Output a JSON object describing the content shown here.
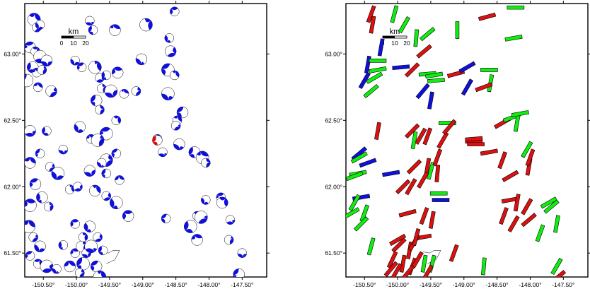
{
  "chart_data": [
    {
      "type": "scatter",
      "panel": "left",
      "marker": "focal-mechanism-beachball",
      "xlim": [
        -150.78,
        -147.13
      ],
      "ylim": [
        61.32,
        63.38
      ],
      "xticks": [
        -150.5,
        -150.0,
        -149.5,
        -149.0,
        -148.5,
        -148.0,
        -147.5
      ],
      "yticks": [
        61.5,
        62.0,
        62.5,
        63.0
      ],
      "xtick_labels": [
        "-150.50°",
        "-150.00°",
        "-149.50°",
        "-149.00°",
        "-148.50°",
        "-148.00°",
        "-147.50°"
      ],
      "ytick_labels": [
        "61.50°",
        "62.00°",
        "62.50°",
        "63.00°"
      ],
      "scale_bar": {
        "title": "km",
        "labels": [
          "0",
          "10",
          "20"
        ]
      },
      "colors": {
        "default": "#1010dd",
        "highlight": "#dd1010"
      },
      "points": [
        [
          -150.64,
          63.26
        ],
        [
          -150.6,
          63.2
        ],
        [
          -150.55,
          63.22
        ],
        [
          -150.7,
          63.05
        ],
        [
          -150.62,
          63.02
        ],
        [
          -150.55,
          62.98
        ],
        [
          -150.66,
          62.9
        ],
        [
          -150.6,
          62.86
        ],
        [
          -150.52,
          62.88
        ],
        [
          -150.45,
          62.95
        ],
        [
          -150.75,
          62.8
        ],
        [
          -150.58,
          62.75
        ],
        [
          -150.38,
          62.72
        ],
        [
          -150.02,
          62.95
        ],
        [
          -149.92,
          62.9
        ],
        [
          -149.72,
          62.9
        ],
        [
          -149.65,
          62.82
        ],
        [
          -149.55,
          62.84
        ],
        [
          -149.38,
          62.86
        ],
        [
          -149.62,
          62.74
        ],
        [
          -149.48,
          62.72
        ],
        [
          -149.7,
          62.65
        ],
        [
          -149.28,
          62.7
        ],
        [
          -149.1,
          62.72
        ],
        [
          -149.02,
          62.96
        ],
        [
          -148.62,
          62.88
        ],
        [
          -148.52,
          62.84
        ],
        [
          -148.58,
          63.02
        ],
        [
          -148.6,
          63.12
        ],
        [
          -148.52,
          63.32
        ],
        [
          -148.95,
          63.22
        ],
        [
          -149.8,
          63.25
        ],
        [
          -149.75,
          63.18
        ],
        [
          -149.42,
          63.18
        ],
        [
          -149.65,
          62.58
        ],
        [
          -148.62,
          62.7
        ],
        [
          -148.4,
          62.56
        ],
        [
          -148.48,
          62.5
        ],
        [
          -148.5,
          62.46
        ],
        [
          -149.95,
          62.45
        ],
        [
          -149.55,
          62.4
        ],
        [
          -149.4,
          62.5
        ],
        [
          -150.7,
          62.42
        ],
        [
          -150.45,
          62.42
        ],
        [
          -149.78,
          62.36
        ],
        [
          -149.68,
          62.35
        ],
        [
          -150.2,
          62.28
        ],
        [
          -150.55,
          62.25
        ],
        [
          -150.7,
          62.18
        ],
        [
          -150.4,
          62.15
        ],
        [
          -150.28,
          62.1
        ],
        [
          -150.62,
          62.02
        ],
        [
          -150.1,
          61.98
        ],
        [
          -149.98,
          62.0
        ],
        [
          -150.52,
          61.92
        ],
        [
          -150.7,
          61.86
        ],
        [
          -150.42,
          61.85
        ],
        [
          -149.8,
          62.12
        ],
        [
          -149.55,
          62.1
        ],
        [
          -149.35,
          62.05
        ],
        [
          -149.55,
          62.2
        ],
        [
          -149.62,
          62.18
        ],
        [
          -149.4,
          62.25
        ],
        [
          -149.72,
          61.97
        ],
        [
          -149.55,
          61.93
        ],
        [
          -149.4,
          61.88
        ],
        [
          -149.22,
          61.78
        ],
        [
          -148.78,
          62.36
        ],
        [
          -148.7,
          62.26
        ],
        [
          -148.22,
          62.26
        ],
        [
          -148.1,
          62.22
        ],
        [
          -148.05,
          62.18
        ],
        [
          -148.45,
          62.32
        ],
        [
          -148.65,
          61.76
        ],
        [
          -148.18,
          61.78
        ],
        [
          -148.12,
          61.77
        ],
        [
          -148.05,
          61.9
        ],
        [
          -147.82,
          61.92
        ],
        [
          -147.8,
          61.88
        ],
        [
          -147.68,
          61.75
        ],
        [
          -148.28,
          61.7
        ],
        [
          -148.18,
          61.6
        ],
        [
          -147.7,
          61.6
        ],
        [
          -147.5,
          61.5
        ],
        [
          -147.55,
          61.34
        ],
        [
          -150.72,
          61.7
        ],
        [
          -150.65,
          61.62
        ],
        [
          -150.55,
          61.55
        ],
        [
          -150.7,
          61.48
        ],
        [
          -150.58,
          61.42
        ],
        [
          -150.45,
          61.4
        ],
        [
          -150.2,
          61.56
        ],
        [
          -150.02,
          61.5
        ],
        [
          -149.92,
          61.55
        ],
        [
          -149.85,
          61.5
        ],
        [
          -149.9,
          61.42
        ],
        [
          -150.1,
          61.4
        ],
        [
          -149.95,
          61.35
        ],
        [
          -150.3,
          61.38
        ],
        [
          -149.7,
          61.4
        ],
        [
          -149.65,
          61.32
        ],
        [
          -149.68,
          61.62
        ],
        [
          -149.8,
          61.7
        ],
        [
          -150.02,
          61.72
        ],
        [
          -149.9,
          61.62
        ],
        [
          -149.78,
          61.55
        ],
        [
          -149.6,
          61.52
        ]
      ],
      "highlight_points": [
        [
          -148.78,
          62.35
        ]
      ]
    },
    {
      "type": "scatter",
      "panel": "right",
      "marker": "oriented-bar",
      "xlim": [
        -150.78,
        -147.13
      ],
      "ylim": [
        61.32,
        63.38
      ],
      "xticks": [
        -150.5,
        -150.0,
        -149.5,
        -149.0,
        -148.5,
        -148.0,
        -147.5
      ],
      "yticks": [
        61.5,
        62.0,
        62.5,
        63.0
      ],
      "xtick_labels": [
        "-150.50°",
        "-150.00°",
        "-149.50°",
        "-149.00°",
        "-148.50°",
        "-148.00°",
        "-147.50°"
      ],
      "ytick_labels": [
        "61.50°",
        "62.00°",
        "62.50°",
        "63.00°"
      ],
      "scale_bar": {
        "title": "km",
        "labels": [
          "0",
          "10",
          "20"
        ]
      },
      "colors": {
        "red": "#dd1010",
        "green": "#10ee10",
        "blue": "#1010dd"
      },
      "bars": [
        [
          -150.4,
          63.3,
          70,
          "red"
        ],
        [
          -150.38,
          63.22,
          80,
          "red"
        ],
        [
          -150.05,
          63.3,
          75,
          "green"
        ],
        [
          -149.9,
          63.22,
          60,
          "green"
        ],
        [
          -149.55,
          63.15,
          40,
          "green"
        ],
        [
          -149.72,
          63.12,
          85,
          "green"
        ],
        [
          -149.6,
          63.02,
          40,
          "red"
        ],
        [
          -149.1,
          63.18,
          90,
          "green"
        ],
        [
          -148.65,
          63.28,
          15,
          "red"
        ],
        [
          -148.22,
          63.35,
          0,
          "green"
        ],
        [
          -148.25,
          63.12,
          10,
          "green"
        ],
        [
          -150.25,
          63.05,
          80,
          "blue"
        ],
        [
          -150.45,
          62.92,
          80,
          "blue"
        ],
        [
          -150.5,
          62.8,
          60,
          "blue"
        ],
        [
          -150.3,
          62.95,
          0,
          "green"
        ],
        [
          -150.3,
          62.88,
          10,
          "green"
        ],
        [
          -150.35,
          62.82,
          30,
          "green"
        ],
        [
          -149.95,
          62.9,
          5,
          "blue"
        ],
        [
          -149.78,
          62.88,
          45,
          "red"
        ],
        [
          -149.55,
          62.85,
          5,
          "green"
        ],
        [
          -149.45,
          62.84,
          10,
          "green"
        ],
        [
          -149.42,
          62.8,
          5,
          "green"
        ],
        [
          -149.12,
          62.85,
          15,
          "red"
        ],
        [
          -148.95,
          62.9,
          30,
          "blue"
        ],
        [
          -148.62,
          62.88,
          0,
          "green"
        ],
        [
          -148.6,
          62.78,
          80,
          "green"
        ],
        [
          -148.95,
          62.75,
          60,
          "blue"
        ],
        [
          -148.7,
          62.75,
          20,
          "red"
        ],
        [
          -149.62,
          62.72,
          50,
          "blue"
        ],
        [
          -149.5,
          62.65,
          80,
          "blue"
        ],
        [
          -150.4,
          62.72,
          40,
          "green"
        ],
        [
          -148.42,
          62.48,
          30,
          "red"
        ],
        [
          -148.28,
          62.52,
          20,
          "green"
        ],
        [
          -148.2,
          62.48,
          80,
          "green"
        ],
        [
          -148.15,
          62.55,
          10,
          "green"
        ],
        [
          -149.25,
          62.48,
          0,
          "green"
        ],
        [
          -150.3,
          62.42,
          80,
          "red"
        ],
        [
          -149.78,
          62.42,
          45,
          "red"
        ],
        [
          -149.65,
          62.38,
          60,
          "red"
        ],
        [
          -149.75,
          62.35,
          80,
          "green"
        ],
        [
          -149.55,
          62.38,
          70,
          "red"
        ],
        [
          -149.32,
          62.35,
          60,
          "red"
        ],
        [
          -149.22,
          62.45,
          50,
          "red"
        ],
        [
          -148.85,
          62.34,
          0,
          "red"
        ],
        [
          -148.82,
          62.32,
          0,
          "red"
        ],
        [
          -148.62,
          62.26,
          10,
          "red"
        ],
        [
          -148.85,
          62.36,
          5,
          "red"
        ],
        [
          -150.58,
          62.25,
          40,
          "blue"
        ],
        [
          -150.58,
          62.22,
          30,
          "green"
        ],
        [
          -150.45,
          62.18,
          20,
          "blue"
        ],
        [
          -150.6,
          62.1,
          10,
          "green"
        ],
        [
          -150.65,
          62.08,
          20,
          "green"
        ],
        [
          -150.1,
          62.1,
          10,
          "blue"
        ],
        [
          -149.75,
          62.15,
          45,
          "red"
        ],
        [
          -149.55,
          62.15,
          80,
          "red"
        ],
        [
          -149.5,
          62.12,
          75,
          "green"
        ],
        [
          -149.4,
          62.1,
          85,
          "red"
        ],
        [
          -149.62,
          62.05,
          60,
          "red"
        ],
        [
          -149.4,
          62.22,
          70,
          "red"
        ],
        [
          -149.8,
          62.0,
          60,
          "red"
        ],
        [
          -149.92,
          62.0,
          45,
          "red"
        ],
        [
          -149.38,
          61.95,
          0,
          "green"
        ],
        [
          -149.35,
          61.9,
          0,
          "blue"
        ],
        [
          -148.42,
          62.2,
          70,
          "red"
        ],
        [
          -148.3,
          62.08,
          30,
          "red"
        ],
        [
          -148.02,
          62.15,
          80,
          "red"
        ],
        [
          -148.0,
          62.22,
          70,
          "red"
        ],
        [
          -148.05,
          62.28,
          60,
          "green"
        ],
        [
          -150.55,
          61.92,
          10,
          "blue"
        ],
        [
          -150.65,
          61.88,
          60,
          "green"
        ],
        [
          -150.7,
          61.8,
          30,
          "green"
        ],
        [
          -150.5,
          61.8,
          70,
          "green"
        ],
        [
          -150.55,
          61.72,
          45,
          "green"
        ],
        [
          -149.85,
          61.8,
          15,
          "red"
        ],
        [
          -149.6,
          61.78,
          70,
          "red"
        ],
        [
          -149.48,
          61.75,
          80,
          "red"
        ],
        [
          -148.3,
          61.9,
          10,
          "red"
        ],
        [
          -148.2,
          61.88,
          80,
          "red"
        ],
        [
          -148.05,
          61.85,
          60,
          "red"
        ],
        [
          -148.4,
          61.78,
          70,
          "red"
        ],
        [
          -148.02,
          61.75,
          40,
          "red"
        ],
        [
          -147.72,
          61.88,
          30,
          "green"
        ],
        [
          -147.68,
          61.85,
          40,
          "green"
        ],
        [
          -148.25,
          61.72,
          60,
          "red"
        ],
        [
          -147.85,
          61.65,
          70,
          "green"
        ],
        [
          -147.6,
          61.72,
          80,
          "green"
        ],
        [
          -149.62,
          61.62,
          10,
          "red"
        ],
        [
          -150.4,
          61.55,
          75,
          "green"
        ],
        [
          -149.98,
          61.56,
          45,
          "red"
        ],
        [
          -149.82,
          61.52,
          80,
          "red"
        ],
        [
          -149.75,
          61.58,
          60,
          "red"
        ],
        [
          -150.08,
          61.45,
          65,
          "red"
        ],
        [
          -149.92,
          61.42,
          80,
          "red"
        ],
        [
          -149.78,
          61.4,
          70,
          "red"
        ],
        [
          -149.7,
          61.45,
          60,
          "red"
        ],
        [
          -149.85,
          61.35,
          50,
          "red"
        ],
        [
          -150.02,
          61.36,
          60,
          "red"
        ],
        [
          -150.1,
          61.38,
          50,
          "red"
        ],
        [
          -149.6,
          61.42,
          80,
          "green"
        ],
        [
          -149.48,
          61.42,
          75,
          "green"
        ],
        [
          -149.55,
          61.35,
          60,
          "red"
        ],
        [
          -148.7,
          61.4,
          85,
          "green"
        ],
        [
          -147.6,
          61.4,
          60,
          "green"
        ],
        [
          -147.58,
          61.32,
          40,
          "red"
        ],
        [
          -149.15,
          61.5,
          70,
          "red"
        ],
        [
          -150.0,
          61.6,
          30,
          "red"
        ],
        [
          -149.72,
          61.62,
          75,
          "red"
        ]
      ]
    }
  ]
}
